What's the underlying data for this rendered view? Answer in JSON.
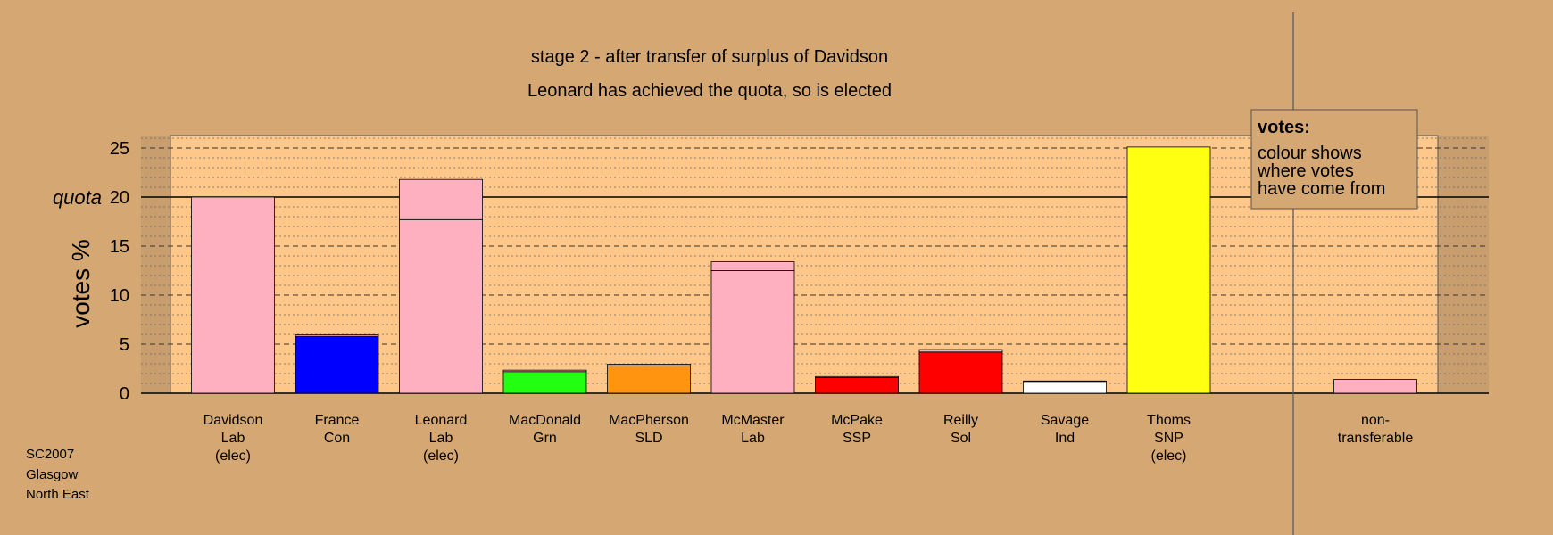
{
  "chart_data": {
    "type": "bar",
    "title": "stage 2 - after transfer of surplus of Davidson",
    "subtitle": "Leonard has achieved the quota, so is elected",
    "ylabel": "votes %",
    "ylim": [
      0,
      26
    ],
    "yticks": [
      0,
      5,
      10,
      15,
      20,
      25
    ],
    "quota": 20,
    "quota_label": "quota",
    "grid": true,
    "categories": [
      [
        "Davidson",
        "Lab",
        "(elec)"
      ],
      [
        "France",
        "Con"
      ],
      [
        "Leonard",
        "Lab",
        "(elec)"
      ],
      [
        "MacDonald",
        "Grn"
      ],
      [
        "MacPherson",
        "SLD"
      ],
      [
        "McMaster",
        "Lab"
      ],
      [
        "McPake",
        "SSP"
      ],
      [
        "Reilly",
        "Sol"
      ],
      [
        "Savage",
        "Ind"
      ],
      [
        "Thoms",
        "SNP",
        "(elec)"
      ]
    ],
    "bars": [
      {
        "own": 20.0,
        "transfer": 0.0,
        "color": "#ffb0c0"
      },
      {
        "own": 5.8,
        "transfer": 0.15,
        "color": "#0000ff"
      },
      {
        "own": 17.7,
        "transfer": 4.1,
        "color": "#ffb0c0"
      },
      {
        "own": 2.2,
        "transfer": 0.15,
        "color": "#22ff11"
      },
      {
        "own": 2.8,
        "transfer": 0.15,
        "color": "#ff9411"
      },
      {
        "own": 12.5,
        "transfer": 0.9,
        "color": "#ffb0c0"
      },
      {
        "own": 1.6,
        "transfer": 0.1,
        "color": "#ff0000"
      },
      {
        "own": 4.2,
        "transfer": 0.25,
        "color": "#ff0000"
      },
      {
        "own": 1.2,
        "transfer": 0.05,
        "color": "#ffffff"
      },
      {
        "own": 25.1,
        "transfer": 0.0,
        "color": "#ffff11"
      }
    ],
    "nontransferable": {
      "label": [
        "non-",
        "transferable"
      ],
      "value": 1.4,
      "color": "#ffb0c0"
    },
    "legend": {
      "title": "votes:",
      "lines": [
        "colour shows",
        "where votes",
        "have come from"
      ],
      "position": "top-right"
    },
    "footnote": [
      "SC2007",
      "Glasgow",
      "North East"
    ],
    "colors": {
      "background": "#d5a873",
      "plot_area": "#ffc88a"
    }
  }
}
